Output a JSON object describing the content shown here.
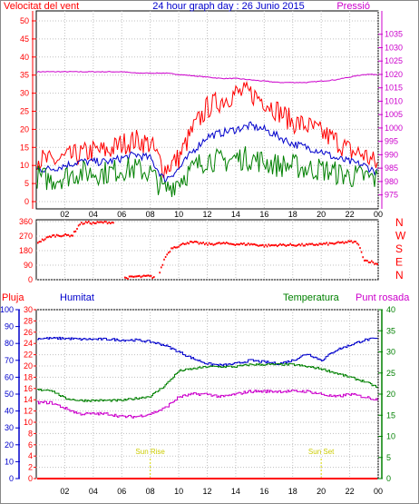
{
  "chart_data": [
    {
      "type": "line",
      "title": "24 hour graph day : 26 Junio 2015",
      "left_axis_label": "Velocitat del vent",
      "right_axis_label": "Pressió",
      "left_ylim": [
        0,
        50
      ],
      "left_ticks": [
        "0",
        "5",
        "10",
        "15",
        "20",
        "25",
        "30",
        "35",
        "40",
        "45",
        "50"
      ],
      "right_ylim": [
        972.5,
        1040
      ],
      "right_ticks": [
        "975",
        "980",
        "985",
        "990",
        "995",
        "1000",
        "1005",
        "1010",
        "1015",
        "1020",
        "1025",
        "1030",
        "1035"
      ],
      "x_range": [
        0,
        24
      ],
      "x_ticks": [
        "02",
        "04",
        "06",
        "08",
        "10",
        "12",
        "14",
        "16",
        "18",
        "20",
        "22",
        "00"
      ],
      "grid": true,
      "series": [
        {
          "color": "#cc00cc",
          "axis": "right",
          "x": [
            0,
            1,
            2,
            3,
            4,
            5,
            6,
            7,
            8,
            9,
            10,
            11,
            12,
            13,
            14,
            15,
            16,
            17,
            18,
            19,
            20,
            21,
            22,
            23,
            24
          ],
          "values": [
            1021,
            1021,
            1021,
            1021,
            1021,
            1021,
            1021,
            1020.5,
            1020.5,
            1020.5,
            1020,
            1019.5,
            1019,
            1018.5,
            1018.5,
            1018,
            1017.5,
            1017,
            1017,
            1017,
            1017.5,
            1018,
            1019,
            1020,
            1020
          ]
        },
        {
          "color": "#ff0000",
          "axis": "left",
          "x": [
            0,
            1,
            2,
            3,
            4,
            5,
            6,
            7,
            8,
            9,
            10,
            11,
            12,
            13,
            14,
            15,
            16,
            17,
            18,
            19,
            20,
            21,
            22,
            23,
            24
          ],
          "values": [
            12,
            11,
            12,
            13,
            14,
            14,
            16,
            17,
            16,
            9,
            12,
            20,
            26,
            28,
            30,
            30,
            28,
            25,
            22,
            21,
            19,
            17,
            14,
            13,
            10
          ]
        },
        {
          "color": "#0000cc",
          "axis": "left",
          "x": [
            0,
            1,
            2,
            3,
            4,
            5,
            6,
            7,
            8,
            9,
            10,
            11,
            12,
            13,
            14,
            15,
            16,
            17,
            18,
            19,
            20,
            21,
            22,
            23,
            24
          ],
          "values": [
            9,
            9,
            10,
            11,
            11,
            11,
            12,
            13,
            12,
            6,
            9,
            14,
            18,
            19,
            20,
            21,
            20,
            18,
            16,
            15,
            14,
            12,
            11,
            10,
            8
          ]
        },
        {
          "color": "#008000",
          "axis": "left",
          "x": [
            0,
            1,
            2,
            3,
            4,
            5,
            6,
            7,
            8,
            9,
            10,
            11,
            12,
            13,
            14,
            15,
            16,
            17,
            18,
            19,
            20,
            21,
            22,
            23,
            24
          ],
          "values": [
            7,
            6,
            7,
            8,
            8,
            8,
            9,
            9,
            8,
            3,
            6,
            9,
            12,
            11,
            12,
            12,
            11,
            10,
            10,
            9,
            9,
            8,
            7,
            7,
            6
          ]
        }
      ]
    },
    {
      "type": "scatter",
      "right_axis_letters": [
        "N",
        "W",
        "S",
        "E",
        "N"
      ],
      "ylim": [
        0,
        360
      ],
      "y_ticks": [
        "0",
        "90",
        "180",
        "270",
        "360"
      ],
      "x_range": [
        0,
        24
      ],
      "grid": true,
      "series": [
        {
          "color": "#ff0000",
          "x": [
            0,
            0.5,
            1,
            1.5,
            2,
            2.5,
            3,
            3.5,
            4,
            4.5,
            5,
            5.5,
            6,
            6.2,
            6.6,
            7,
            7.4,
            7.8,
            8.2,
            8.6,
            9,
            9.5,
            10,
            10.5,
            11,
            12,
            13,
            14,
            15,
            16,
            17,
            18,
            19,
            20,
            21,
            22,
            22.5,
            23,
            23.5,
            24
          ],
          "values": [
            230,
            250,
            270,
            275,
            275,
            275,
            345,
            355,
            350,
            355,
            355,
            355,
            15,
            10,
            15,
            20,
            18,
            22,
            15,
            40,
            140,
            200,
            210,
            230,
            230,
            220,
            225,
            220,
            220,
            210,
            215,
            215,
            215,
            220,
            225,
            235,
            230,
            120,
            110,
            90
          ]
        }
      ]
    },
    {
      "type": "line",
      "labels": {
        "pluja": "Pluja",
        "humitat": "Humitat",
        "temperatura": "Temperatura",
        "punt_rosada": "Punt rosada"
      },
      "pluja_ylim": [
        0,
        30
      ],
      "pluja_ticks": [
        "0",
        "2",
        "4",
        "6",
        "8",
        "10",
        "12",
        "14",
        "16",
        "18",
        "20",
        "22",
        "24",
        "26",
        "28",
        "30"
      ],
      "humitat_ylim": [
        0,
        100
      ],
      "humitat_ticks": [
        "0",
        "10",
        "20",
        "30",
        "40",
        "50",
        "60",
        "70",
        "80",
        "90",
        "100"
      ],
      "temp_ylim": [
        0,
        40
      ],
      "temp_ticks": [
        "0",
        "5",
        "10",
        "15",
        "20",
        "25",
        "30",
        "35",
        "40"
      ],
      "x_range": [
        0,
        24
      ],
      "x_ticks": [
        "02",
        "04",
        "06",
        "08",
        "10",
        "12",
        "14",
        "16",
        "18",
        "20",
        "22",
        "00"
      ],
      "sun_rise": {
        "label": "Sun Rise",
        "x": 8
      },
      "sun_set": {
        "label": "Sun Set",
        "x": 20
      },
      "grid": true,
      "series": [
        {
          "color": "#0000cc",
          "axis": "humitat",
          "x": [
            0,
            1,
            2,
            3,
            4,
            5,
            6,
            7,
            8,
            9,
            10,
            11,
            12,
            13,
            14,
            15,
            16,
            17,
            18,
            19,
            20,
            21,
            22,
            23,
            24
          ],
          "values": [
            83,
            83,
            83,
            82.5,
            82.5,
            82.5,
            82,
            82,
            81,
            79,
            75,
            71,
            68,
            67,
            68,
            70,
            69,
            68,
            70,
            74,
            70,
            76,
            79,
            82,
            83
          ]
        },
        {
          "color": "#008000",
          "axis": "temp",
          "x": [
            0,
            1,
            2,
            3,
            4,
            5,
            6,
            7,
            8,
            9,
            10,
            11,
            12,
            13,
            14,
            15,
            16,
            17,
            18,
            19,
            20,
            21,
            22,
            23,
            24
          ],
          "values": [
            21,
            21,
            19,
            18.5,
            18.5,
            18.5,
            18.5,
            19,
            19.5,
            22,
            25.5,
            26,
            26.5,
            26.5,
            26.5,
            27,
            27,
            27,
            27,
            26.5,
            26,
            25,
            24,
            23,
            21.5
          ]
        },
        {
          "color": "#cc00cc",
          "axis": "pluja",
          "x": [
            0,
            1,
            2,
            3,
            4,
            5,
            6,
            7,
            8,
            9,
            10,
            11,
            12,
            13,
            14,
            15,
            16,
            17,
            18,
            19,
            20,
            21,
            22,
            23,
            24
          ],
          "values": [
            13.5,
            13.5,
            12.5,
            11.5,
            11.5,
            11.5,
            11,
            11,
            11.5,
            12.5,
            14.5,
            15,
            15,
            14.5,
            15,
            15.5,
            15.5,
            15.5,
            15.5,
            15.5,
            15,
            14.5,
            15,
            14.5,
            14
          ]
        },
        {
          "color": "#ff0000",
          "axis": "pluja",
          "x": [
            0,
            24
          ],
          "values": [
            0,
            0
          ]
        }
      ]
    }
  ]
}
